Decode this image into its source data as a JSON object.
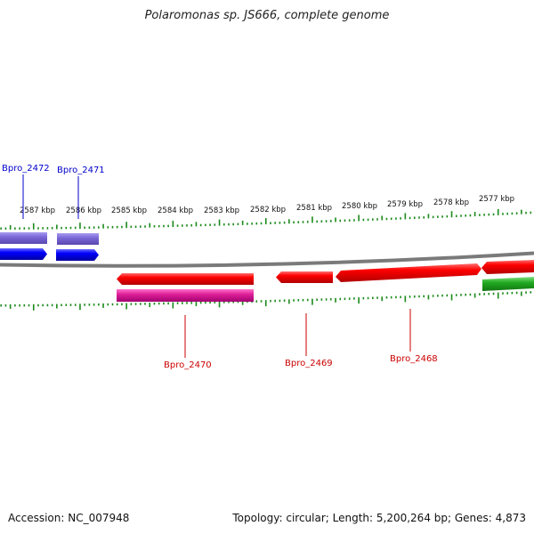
{
  "title": "Polaromonas sp. JS666, complete genome",
  "footer": {
    "accession": "Accession: NC_007948",
    "topology": "Topology: circular; Length: 5,200,264 bp; Genes: 4,873"
  },
  "colors": {
    "tick": "#1a8a1a",
    "backbone": "#7a7a7a",
    "forward_strand": "#ee0000",
    "reverse_strand": "#0000ee",
    "label_forward": "#cc0000",
    "label_reverse": "#0000cc",
    "cds_reverse": "#7b68d8",
    "cds_forward": "#e0209a",
    "other_feature": "#22aa22"
  },
  "ruler": {
    "labels": [
      "2587 kbp",
      "2586 kbp",
      "2585 kbp",
      "2584 kbp",
      "2583 kbp",
      "2582 kbp",
      "2581 kbp",
      "2580 kbp",
      "2579 kbp",
      "2578 kbp",
      "2577 kbp"
    ]
  },
  "genes": [
    {
      "name": "Bpro_2472",
      "strand": "reverse",
      "feature_color": "cds_reverse"
    },
    {
      "name": "Bpro_2471",
      "strand": "reverse",
      "feature_color": "cds_reverse"
    },
    {
      "name": "Bpro_2470",
      "strand": "forward",
      "feature_color": "cds_forward"
    },
    {
      "name": "Bpro_2469",
      "strand": "forward",
      "feature_color": null
    },
    {
      "name": "Bpro_2468",
      "strand": "forward",
      "feature_color": null
    },
    {
      "name": "",
      "strand": "forward",
      "feature_color": "other_feature"
    }
  ]
}
